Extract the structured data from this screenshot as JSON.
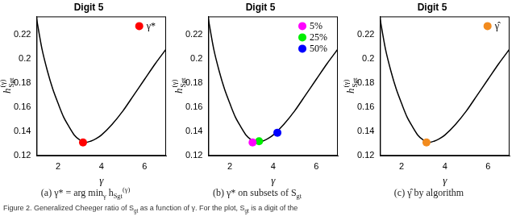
{
  "chart_data": [
    {
      "type": "line",
      "title": "Digit 5",
      "xlabel": "γ",
      "ylabel": {
        "base": "h",
        "sup": "(γ)",
        "sub": "Sgt"
      },
      "caption": [
        {
          "t": "(a) γ* = arg min"
        },
        {
          "sub": "γ"
        },
        {
          "t": " h"
        },
        {
          "sub": "Sgt"
        },
        {
          "sup": "(γ)"
        }
      ],
      "xlim": [
        1,
        7
      ],
      "xticks": [
        2,
        4,
        6
      ],
      "ylim": [
        0.12,
        0.235
      ],
      "yticks": [
        0.12,
        0.14,
        0.16,
        0.18,
        0.2,
        0.22
      ],
      "grid": false,
      "legend": "upper right",
      "series": [
        {
          "type": "line",
          "color": "#000000",
          "x": [
            1,
            1.25,
            1.5,
            1.75,
            2,
            2.25,
            2.5,
            2.75,
            3,
            3.25,
            3.5,
            3.75,
            4,
            4.5,
            5,
            5.5,
            6,
            6.5,
            7
          ],
          "values": [
            0.233,
            0.208,
            0.19,
            0.175,
            0.163,
            0.152,
            0.144,
            0.137,
            0.133,
            0.131,
            0.132,
            0.134,
            0.137,
            0.146,
            0.157,
            0.17,
            0.183,
            0.196,
            0.208
          ]
        },
        {
          "type": "scatter",
          "name": "γ*",
          "color": "#ff0000",
          "x": [
            3.15
          ],
          "values": [
            0.131
          ]
        }
      ]
    },
    {
      "type": "line",
      "title": "Digit 5",
      "xlabel": "γ",
      "ylabel": {
        "base": "h",
        "sup": "(γ)",
        "sub": "Sgt"
      },
      "caption": [
        {
          "t": "(b) γ* on subsets of S"
        },
        {
          "sub": "gt"
        }
      ],
      "xlim": [
        1,
        7
      ],
      "xticks": [
        2,
        4,
        6
      ],
      "ylim": [
        0.12,
        0.235
      ],
      "yticks": [
        0.12,
        0.14,
        0.16,
        0.18,
        0.2,
        0.22
      ],
      "grid": false,
      "legend": "upper right",
      "series": [
        {
          "type": "line",
          "color": "#000000",
          "x": [
            1,
            1.25,
            1.5,
            1.75,
            2,
            2.25,
            2.5,
            2.75,
            3,
            3.25,
            3.5,
            3.75,
            4,
            4.5,
            5,
            5.5,
            6,
            6.5,
            7
          ],
          "values": [
            0.233,
            0.208,
            0.19,
            0.175,
            0.163,
            0.152,
            0.144,
            0.137,
            0.133,
            0.131,
            0.132,
            0.134,
            0.137,
            0.146,
            0.157,
            0.17,
            0.183,
            0.196,
            0.208
          ]
        },
        {
          "type": "scatter",
          "name": "5%",
          "color": "#ff00ff",
          "x": [
            3.05
          ],
          "values": [
            0.131
          ]
        },
        {
          "type": "scatter",
          "name": "25%",
          "color": "#00ee00",
          "x": [
            3.35
          ],
          "values": [
            0.132
          ]
        },
        {
          "type": "scatter",
          "name": "50%",
          "color": "#0000ff",
          "x": [
            4.2
          ],
          "values": [
            0.139
          ]
        }
      ]
    },
    {
      "type": "line",
      "title": "Digit 5",
      "xlabel": "γ",
      "ylabel": {
        "base": "h",
        "sup": "(γ)",
        "sub": "Sgt"
      },
      "caption": [
        {
          "t": "(c) γ̂ by algorithm"
        }
      ],
      "xlim": [
        1,
        7
      ],
      "xticks": [
        2,
        4,
        6
      ],
      "ylim": [
        0.12,
        0.235
      ],
      "yticks": [
        0.12,
        0.14,
        0.16,
        0.18,
        0.2,
        0.22
      ],
      "grid": false,
      "legend": "upper right",
      "series": [
        {
          "type": "line",
          "color": "#000000",
          "x": [
            1,
            1.25,
            1.5,
            1.75,
            2,
            2.25,
            2.5,
            2.75,
            3,
            3.25,
            3.5,
            3.75,
            4,
            4.5,
            5,
            5.5,
            6,
            6.5,
            7
          ],
          "values": [
            0.233,
            0.208,
            0.19,
            0.175,
            0.163,
            0.152,
            0.144,
            0.137,
            0.133,
            0.131,
            0.132,
            0.134,
            0.137,
            0.146,
            0.157,
            0.17,
            0.183,
            0.196,
            0.208
          ]
        },
        {
          "type": "scatter",
          "name": "γ̂",
          "color": "#f28b1e",
          "x": [
            3.15
          ],
          "values": [
            0.131
          ]
        }
      ]
    }
  ],
  "figure_caption": [
    {
      "t": "Figure 2. Generalized Cheeger ratio of S"
    },
    {
      "sub": "gt"
    },
    {
      "t": " as a function of γ. For the plot, S"
    },
    {
      "sub": "gt"
    },
    {
      "t": " is a digit of the"
    }
  ]
}
